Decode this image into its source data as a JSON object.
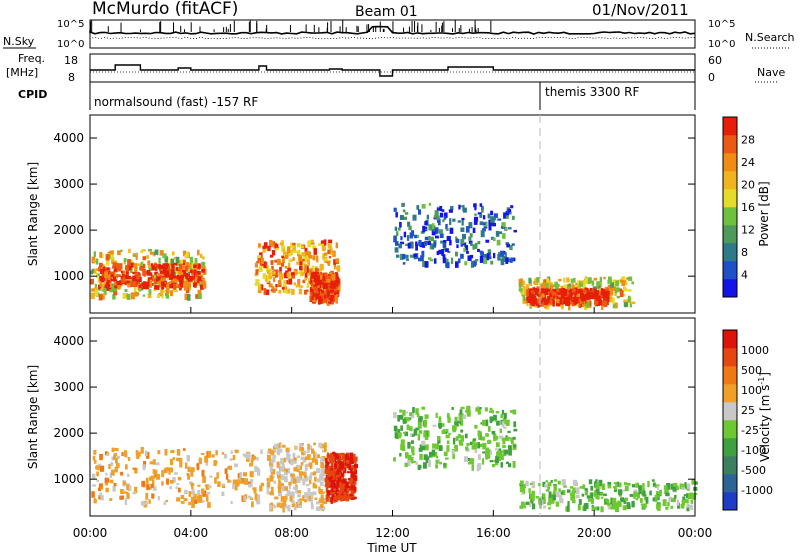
{
  "header": {
    "station": "McMurdo (fitACF)",
    "beam": "Beam 01",
    "date": "01/Nov/2011"
  },
  "aux_panel": {
    "nsky_label": "N.Sky",
    "nsky_ticks": [
      "10^5",
      "10^0"
    ],
    "nsearch_label": "N.Search",
    "nsearch_ticks": [
      "10^5",
      "10^0"
    ],
    "freq_label_1": "Freq.",
    "freq_label_2": "[MHz]",
    "freq_ticks": [
      "18",
      "8"
    ],
    "nave_label": "Nave",
    "nave_ticks": [
      "60",
      "0"
    ],
    "cpid_label": "CPID",
    "cpid_segments": [
      {
        "label": "normalsound (fast) -157 RF",
        "start_hour": 0
      },
      {
        "label": "themis 3300 RF",
        "start_hour": 18
      }
    ]
  },
  "chart_data": [
    {
      "type": "heatmap",
      "name": "power",
      "ylabel": "Slant Range [km]",
      "ylim": [
        200,
        4500
      ],
      "yticks": [
        "1000",
        "2000",
        "3000",
        "4000"
      ],
      "xlim": [
        "00:00",
        "24:00"
      ],
      "colorbar": {
        "label": "Power [dB]",
        "ticks": [
          "28",
          "24",
          "20",
          "16",
          "12",
          "8",
          "4"
        ],
        "range": [
          0,
          30
        ],
        "colors": [
          "#1414e6",
          "#1e50c8",
          "#2f7a8a",
          "#4e9a5a",
          "#70c040",
          "#e6dc28",
          "#f0b41e",
          "#f08c14",
          "#eb5a14",
          "#e61e0a"
        ]
      },
      "approx_echo_regions": [
        {
          "t_start": 0.0,
          "t_end": 4.5,
          "range_km": [
            600,
            1600
          ],
          "power_db": 18
        },
        {
          "t_start": 0.3,
          "t_end": 4.5,
          "range_km": [
            800,
            1300
          ],
          "power_db": 28
        },
        {
          "t_start": 6.5,
          "t_end": 9.8,
          "range_km": [
            700,
            1800
          ],
          "power_db": 22
        },
        {
          "t_start": 8.7,
          "t_end": 9.8,
          "range_km": [
            500,
            1100
          ],
          "power_db": 28
        },
        {
          "t_start": 12.0,
          "t_end": 16.8,
          "range_km": [
            1300,
            2600
          ],
          "power_db": 6
        },
        {
          "t_start": 17.0,
          "t_end": 21.5,
          "range_km": [
            400,
            1000
          ],
          "power_db": 18
        },
        {
          "t_start": 17.3,
          "t_end": 20.5,
          "range_km": [
            450,
            750
          ],
          "power_db": 30
        }
      ]
    },
    {
      "type": "heatmap",
      "name": "velocity",
      "ylabel": "Slant Range [km]",
      "ylim": [
        200,
        4500
      ],
      "yticks": [
        "1000",
        "2000",
        "3000",
        "4000"
      ],
      "xlabel": "Time UT",
      "xticks": [
        "00:00",
        "04:00",
        "08:00",
        "12:00",
        "16:00",
        "20:00",
        "00:00"
      ],
      "colorbar": {
        "label_main": "Velocity",
        "label_unit": "[m s",
        "label_exp": "-1",
        "label_close": "]",
        "ticks": [
          "1000",
          "500",
          "100",
          "25",
          "-25",
          "-100",
          "-500",
          "-1000"
        ],
        "range": [
          -1100,
          1100
        ],
        "colors": [
          "#1e3cc8",
          "#2c6496",
          "#3a8060",
          "#3fa040",
          "#6ec832",
          "#c8c8c8",
          "#f0a028",
          "#f07814",
          "#e64610",
          "#dc140a"
        ]
      },
      "approx_echo_regions": [
        {
          "t_start": 0.0,
          "t_end": 6.8,
          "range_km": [
            500,
            1700
          ],
          "velocity_ms": 300
        },
        {
          "t_start": 7.0,
          "t_end": 9.3,
          "range_km": [
            400,
            1800
          ],
          "velocity_ms": 200
        },
        {
          "t_start": 9.3,
          "t_end": 10.5,
          "range_km": [
            600,
            1600
          ],
          "velocity_ms": 900
        },
        {
          "t_start": 12.0,
          "t_end": 16.8,
          "range_km": [
            1300,
            2600
          ],
          "velocity_ms": -150
        },
        {
          "t_start": 17.0,
          "t_end": 24.0,
          "range_km": [
            400,
            1000
          ],
          "velocity_ms": -150
        }
      ]
    }
  ]
}
